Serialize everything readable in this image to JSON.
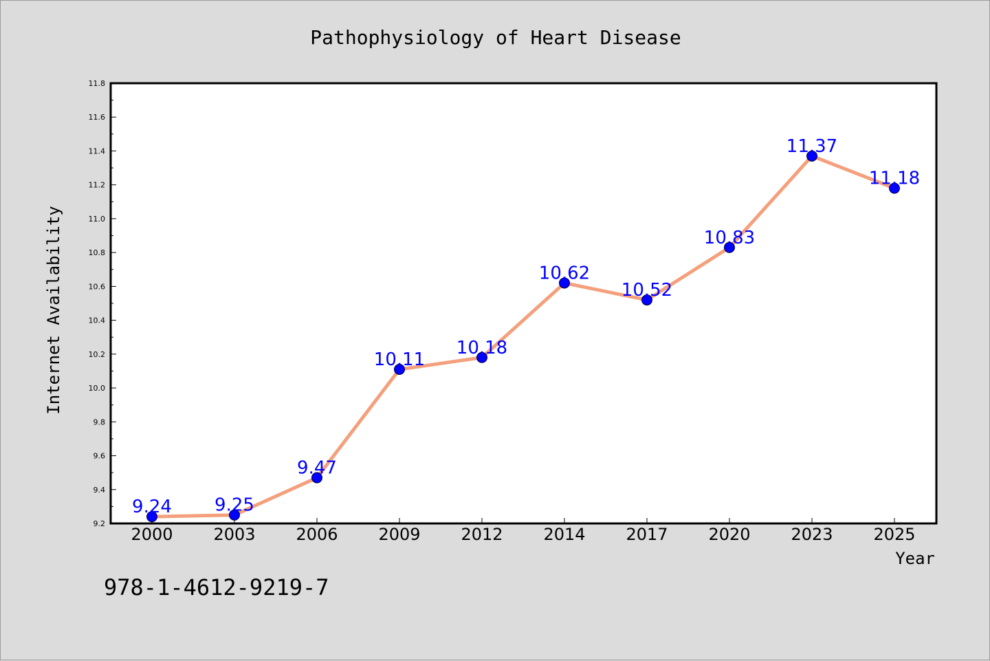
{
  "chart_data": {
    "type": "line",
    "title": "Pathophysiology of Heart Disease",
    "xlabel": "Year",
    "ylabel": "Internet Availability",
    "categories": [
      "2000",
      "2003",
      "2006",
      "2009",
      "2012",
      "2014",
      "2017",
      "2020",
      "2023",
      "2025"
    ],
    "series": [
      {
        "values": [
          9.24,
          9.25,
          9.47,
          10.11,
          10.18,
          10.62,
          10.52,
          10.83,
          11.37,
          11.18
        ],
        "labels": [
          "9.24",
          "9.25",
          "9.47",
          "10.11",
          "10.18",
          "10.62",
          "10.52",
          "10.83",
          "11.37",
          "11.18"
        ],
        "line_color": "#f4a07c",
        "marker_color": "#0000ff"
      }
    ],
    "ylim": [
      9.2,
      11.8
    ],
    "yticks": [
      "9.2",
      "9.4",
      "9.6",
      "9.8",
      "10.0",
      "10.2",
      "10.4",
      "10.6",
      "10.8",
      "11.0",
      "11.2",
      "11.4",
      "11.6",
      "11.8"
    ],
    "grid": false,
    "legend": "none"
  },
  "footer": {
    "isbn": "978-1-4612-9219-7"
  },
  "colors": {
    "background": "#dcdcdc",
    "plot_background": "#ffffff",
    "label_color": "#0000ff"
  }
}
